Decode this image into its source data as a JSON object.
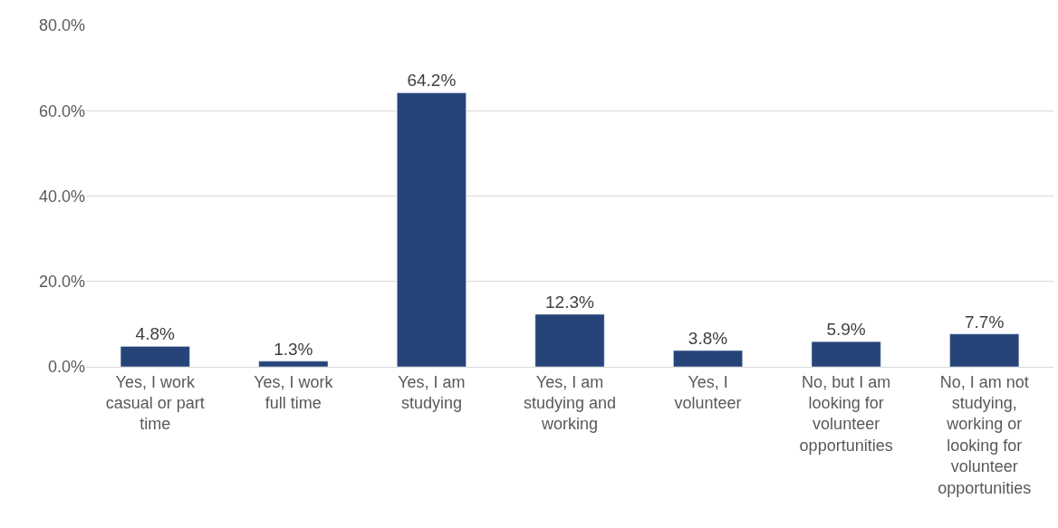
{
  "chart_data": {
    "type": "bar",
    "categories": [
      "Yes, I work casual or part time",
      "Yes, I work full time",
      "Yes, I am studying",
      "Yes, I am studying and working",
      "Yes, I volunteer",
      "No, but I am looking for volunteer opportunities",
      "No, I am not studying, working or looking for volunteer opportunities"
    ],
    "values": [
      4.8,
      1.3,
      64.2,
      12.3,
      3.8,
      5.9,
      7.7
    ],
    "value_labels": [
      "4.8%",
      "1.3%",
      "64.2%",
      "12.3%",
      "3.8%",
      "5.9%",
      "7.7%"
    ],
    "color": "#264478",
    "ylim": [
      0,
      80
    ],
    "yticks": [
      {
        "value": 0,
        "label": "0.0%"
      },
      {
        "value": 20,
        "label": "20.0%"
      },
      {
        "value": 40,
        "label": "40.0%"
      },
      {
        "value": 60,
        "label": "60.0%"
      },
      {
        "value": 80,
        "label": "80.0%"
      }
    ],
    "grid": "y",
    "legend": false
  }
}
